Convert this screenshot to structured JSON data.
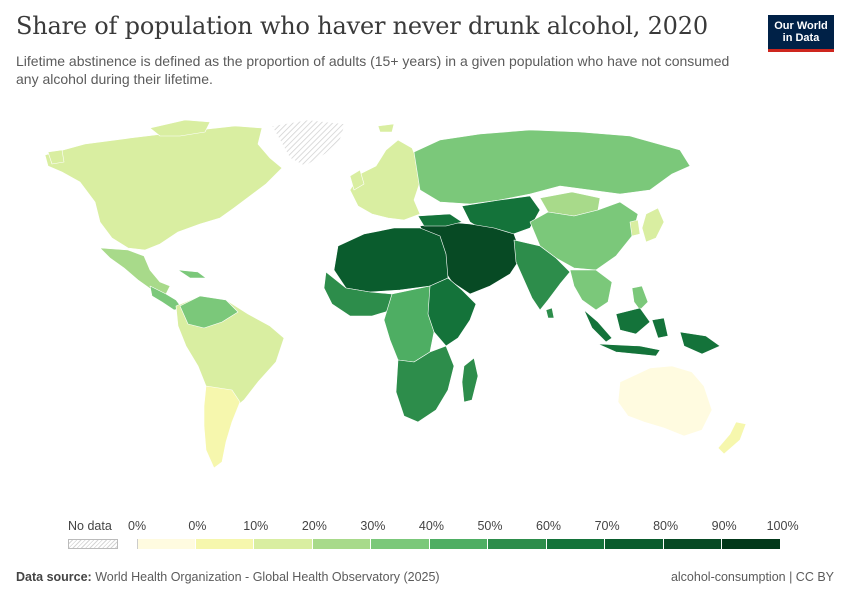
{
  "header": {
    "title": "Share of population who haver never drunk alcohol, 2020",
    "subtitle": "Lifetime abstinence is defined as the proportion of adults (15+ years) in a given population who have not consumed any alcohol during their lifetime.",
    "logo_line1": "Our World",
    "logo_line2": "in Data"
  },
  "legend": {
    "no_data_label": "No data",
    "bins": [
      {
        "label_left": "0%",
        "label_right": "0%",
        "color": "#fffbe0"
      },
      {
        "label_right": "10%",
        "color": "#f6f7ad"
      },
      {
        "label_right": "20%",
        "color": "#d9eea1"
      },
      {
        "label_right": "30%",
        "color": "#a8da8a"
      },
      {
        "label_right": "40%",
        "color": "#7bc87a"
      },
      {
        "label_right": "50%",
        "color": "#4eae63"
      },
      {
        "label_right": "60%",
        "color": "#2d8d4b"
      },
      {
        "label_right": "70%",
        "color": "#14733a"
      },
      {
        "label_right": "80%",
        "color": "#0a5c2d"
      },
      {
        "label_right": "90%",
        "color": "#074a24"
      },
      {
        "label_right": "100%",
        "color": "#03381a"
      }
    ],
    "no_data_color": "#e8e8e8"
  },
  "map_colors": {
    "north_america": "#d9eea1",
    "greenland": "#e8e8e8",
    "mexico": "#a8da8a",
    "central_america": "#7bc87a",
    "south_america": "#d9eea1",
    "southern_cone": "#f6f7ad",
    "europe": "#d9eea1",
    "russia": "#7bc87a",
    "central_asia": "#14733a",
    "mongolia": "#a8da8a",
    "china": "#7bc87a",
    "japan_korea": "#d9eea1",
    "south_asia": "#2d8d4b",
    "middle_east": "#074a24",
    "north_africa": "#0a5c2d",
    "west_africa": "#2d8d4b",
    "central_africa": "#4eae63",
    "east_africa": "#14733a",
    "southern_africa": "#2d8d4b",
    "madagascar": "#2d8d4b",
    "southeast_asia": "#7bc87a",
    "indonesia": "#14733a",
    "australia": "#fffbe0",
    "new_zealand": "#f6f7ad",
    "ocean": "#ffffff"
  },
  "footer": {
    "source_label": "Data source:",
    "source_text": "World Health Organization - Global Health Observatory (2025)",
    "license": "alcohol-consumption | CC BY"
  }
}
